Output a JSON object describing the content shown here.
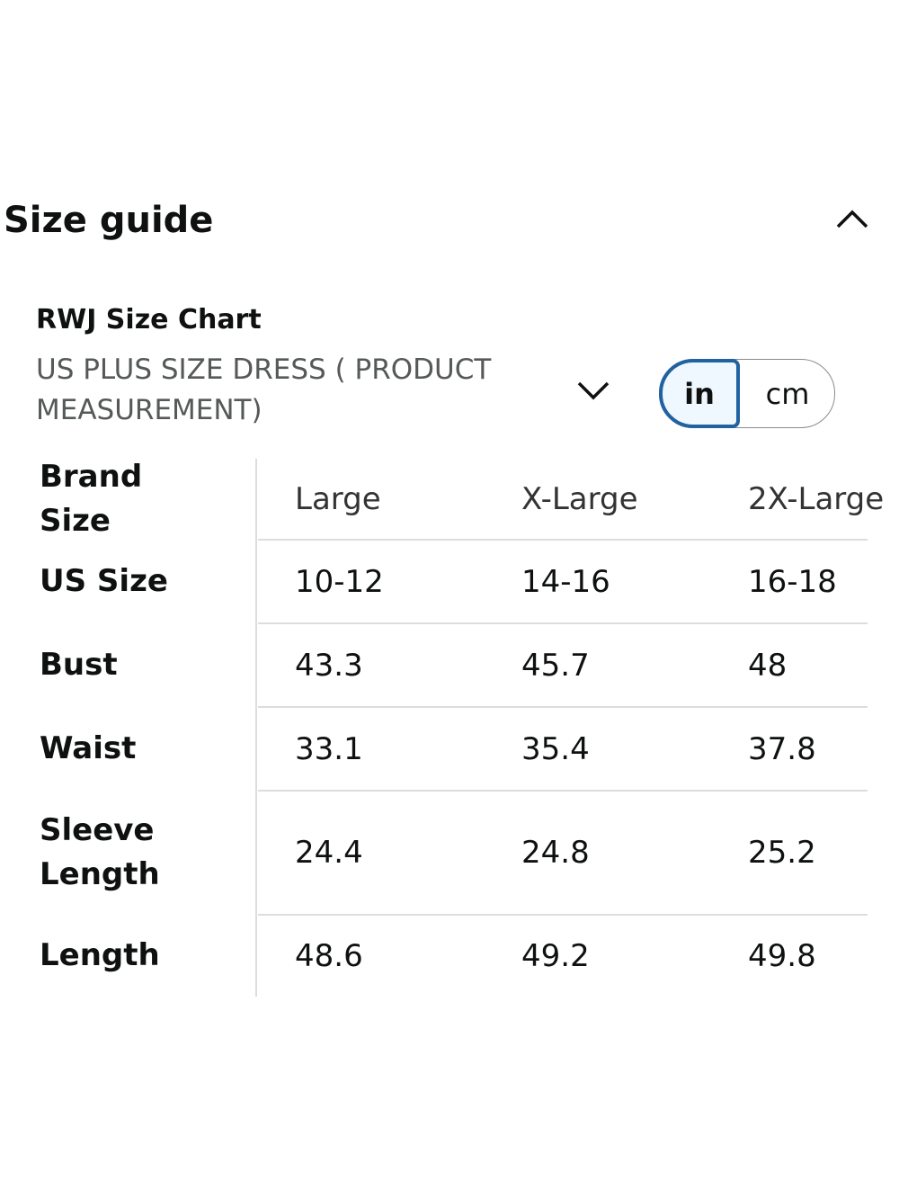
{
  "header": {
    "title": "Size guide"
  },
  "chart": {
    "name": "RWJ Size Chart",
    "selector": "US PLUS SIZE DRESS ( PRODUCT MEASUREMENT)",
    "units": [
      "in",
      "cm"
    ]
  },
  "table": {
    "header": [
      "Brand Size",
      "Large",
      "X-Large",
      "2X-Large"
    ],
    "rows": [
      [
        "US Size",
        "10-12",
        "14-16",
        "16-18"
      ],
      [
        "Bust",
        "43.3",
        "45.7",
        "48"
      ],
      [
        "Waist",
        "33.1",
        "35.4",
        "37.8"
      ],
      [
        "Sleeve Length",
        "24.4",
        "24.8",
        "25.2"
      ],
      [
        "Length",
        "48.6",
        "49.2",
        "49.8"
      ]
    ]
  }
}
